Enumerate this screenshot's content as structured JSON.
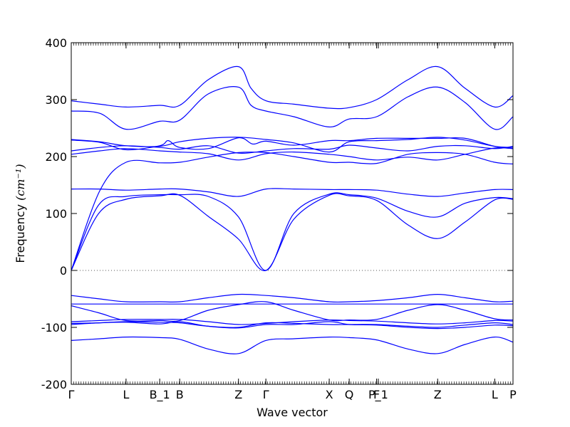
{
  "chart_data": {
    "type": "line",
    "title": "",
    "xlabel": "Wave vector",
    "ylabel": "Frequency ",
    "ylabel_unit": "(cm⁻¹)",
    "ylim": [
      -200,
      400
    ],
    "yticks": [
      -200,
      -100,
      0,
      100,
      200,
      300,
      400
    ],
    "xlim": [
      0,
      7.74
    ],
    "xticks": [
      {
        "pos": 0.0,
        "label": "Γ"
      },
      {
        "pos": 0.96,
        "label": "L"
      },
      {
        "pos": 1.55,
        "label": "B_1"
      },
      {
        "pos": 1.9,
        "label": "B"
      },
      {
        "pos": 2.93,
        "label": "Z"
      },
      {
        "pos": 3.41,
        "label": "Γ"
      },
      {
        "pos": 4.52,
        "label": "X"
      },
      {
        "pos": 4.87,
        "label": "Q"
      },
      {
        "pos": 5.35,
        "label": "F"
      },
      {
        "pos": 5.38,
        "label": "P_1"
      },
      {
        "pos": 6.42,
        "label": "Z"
      },
      {
        "pos": 7.42,
        "label": "L"
      },
      {
        "pos": 7.74,
        "label": "P"
      }
    ],
    "zero_line": true,
    "grid": false,
    "series": [
      {
        "color": "#0000ff",
        "x": [
          0,
          0.48,
          0.96,
          1.55,
          1.9,
          2.4,
          2.93,
          3.41,
          3.9,
          4.52,
          4.87,
          5.35,
          5.9,
          6.42,
          6.9,
          7.42,
          7.74
        ],
        "y": [
          0,
          100,
          125,
          131,
          132,
          95,
          55,
          0,
          90,
          132,
          131,
          123,
          80,
          56,
          85,
          124,
          125
        ]
      },
      {
        "color": "#0000ff",
        "x": [
          0,
          0.48,
          0.96,
          1.55,
          1.9,
          2.4,
          2.93,
          3.41,
          3.9,
          4.52,
          4.87,
          5.35,
          5.9,
          6.42,
          6.9,
          7.42,
          7.74
        ],
        "y": [
          0,
          115,
          130,
          133,
          133,
          130,
          94,
          0,
          100,
          134,
          133,
          127,
          104,
          94,
          118,
          128,
          126
        ]
      },
      {
        "color": "#0000ff",
        "x": [
          0,
          0.5,
          0.96,
          1.55,
          1.9,
          2.4,
          2.93,
          3.41,
          3.9,
          4.52,
          4.87,
          5.35,
          5.9,
          6.42,
          6.9,
          7.42,
          7.74
        ],
        "y": [
          143,
          143,
          141,
          143,
          143,
          138,
          130,
          143,
          143,
          142,
          142,
          141,
          134,
          130,
          136,
          142,
          142
        ]
      },
      {
        "color": "#0000ff",
        "x": [
          0,
          0.5,
          0.96,
          1.55,
          1.9,
          2.4,
          2.93,
          3.41,
          3.9,
          4.52,
          4.87,
          5.35,
          5.9,
          6.42,
          6.9,
          7.42,
          7.74
        ],
        "y": [
          0,
          140,
          190,
          189,
          190,
          199,
          207,
          207,
          200,
          190,
          190,
          188,
          204,
          207,
          204,
          190,
          187
        ]
      },
      {
        "color": "#0000ff",
        "x": [
          0,
          0.5,
          0.96,
          1.55,
          1.9,
          2.4,
          2.93,
          3.41,
          3.9,
          4.52,
          4.87,
          5.35,
          5.9,
          6.42,
          6.9,
          7.42,
          7.74
        ],
        "y": [
          204,
          210,
          214,
          210,
          208,
          205,
          194,
          205,
          208,
          204,
          200,
          194,
          199,
          194,
          204,
          215,
          214
        ]
      },
      {
        "color": "#0000ff",
        "x": [
          0,
          0.5,
          0.96,
          1.55,
          1.9,
          2.4,
          2.93,
          3.41,
          3.9,
          4.52,
          4.87,
          5.35,
          5.9,
          6.42,
          6.9,
          7.42,
          7.74
        ],
        "y": [
          210,
          216,
          219,
          216,
          213,
          219,
          206,
          210,
          214,
          213,
          220,
          215,
          210,
          218,
          219,
          214,
          218
        ]
      },
      {
        "color": "#0000ff",
        "x": [
          0,
          0.5,
          0.96,
          1.55,
          1.7,
          1.9,
          2.4,
          2.93,
          3.18,
          3.41,
          3.9,
          4.52,
          4.87,
          5.35,
          5.9,
          6.42,
          6.9,
          7.42,
          7.74
        ],
        "y": [
          229,
          225,
          212,
          219,
          228,
          216,
          214,
          233,
          222,
          227,
          220,
          228,
          228,
          232,
          232,
          232,
          232,
          218,
          214
        ]
      },
      {
        "color": "#0000ff",
        "x": [
          0,
          0.5,
          0.96,
          1.55,
          1.9,
          2.4,
          2.93,
          3.41,
          3.9,
          4.52,
          4.87,
          5.35,
          5.9,
          6.42,
          6.9,
          7.42,
          7.74
        ],
        "y": [
          230,
          226,
          219,
          218,
          226,
          232,
          234,
          230,
          224,
          208,
          226,
          228,
          230,
          234,
          229,
          218,
          216
        ]
      },
      {
        "color": "#0000ff",
        "x": [
          0,
          0.5,
          0.96,
          1.55,
          1.9,
          2.4,
          2.93,
          3.15,
          3.41,
          3.9,
          4.52,
          4.87,
          5.35,
          5.9,
          6.42,
          6.9,
          7.42,
          7.74
        ],
        "y": [
          280,
          276,
          248,
          262,
          264,
          310,
          322,
          290,
          280,
          270,
          252,
          266,
          270,
          305,
          322,
          295,
          248,
          270
        ]
      },
      {
        "color": "#0000ff",
        "x": [
          0,
          0.5,
          0.96,
          1.55,
          1.9,
          2.4,
          2.93,
          3.15,
          3.41,
          3.9,
          4.52,
          4.87,
          5.35,
          5.9,
          6.42,
          6.9,
          7.42,
          7.74
        ],
        "y": [
          298,
          292,
          287,
          290,
          290,
          335,
          358,
          320,
          298,
          292,
          285,
          286,
          300,
          335,
          358,
          320,
          287,
          307
        ]
      },
      {
        "color": "#0000ff",
        "x": [
          0,
          0.5,
          0.96,
          1.55,
          1.9,
          2.4,
          2.93,
          3.41,
          3.9,
          4.52,
          4.87,
          5.35,
          5.9,
          6.42,
          6.9,
          7.42,
          7.74
        ],
        "y": [
          -44,
          -50,
          -55,
          -55,
          -55,
          -48,
          -42,
          -44,
          -48,
          -55,
          -55,
          -53,
          -48,
          -42,
          -48,
          -55,
          -54
        ]
      },
      {
        "color": "#0000ff",
        "x": [
          0,
          0.5,
          0.96,
          1.55,
          1.9,
          2.4,
          2.93,
          3.41,
          3.9,
          4.52,
          4.87,
          5.35,
          5.9,
          6.42,
          6.9,
          7.42,
          7.74
        ],
        "y": [
          -59,
          -59,
          -59,
          -59,
          -59,
          -59,
          -59,
          -59,
          -59,
          -59,
          -59,
          -59,
          -59,
          -59,
          -59,
          -59,
          -59
        ]
      },
      {
        "color": "#0000ff",
        "x": [
          0,
          0.5,
          0.96,
          1.55,
          1.9,
          2.4,
          2.93,
          3.41,
          3.9,
          4.52,
          4.87,
          5.35,
          5.9,
          6.42,
          6.9,
          7.42,
          7.74
        ],
        "y": [
          -62,
          -75,
          -88,
          -88,
          -88,
          -70,
          -60,
          -55,
          -70,
          -87,
          -87,
          -86,
          -70,
          -60,
          -70,
          -85,
          -87
        ]
      },
      {
        "color": "#0000ff",
        "x": [
          0,
          0.5,
          0.96,
          1.55,
          1.9,
          2.4,
          2.93,
          3.41,
          3.9,
          4.52,
          4.87,
          5.35,
          5.9,
          6.42,
          6.9,
          7.42,
          7.74
        ],
        "y": [
          -90,
          -88,
          -86,
          -86,
          -86,
          -90,
          -95,
          -93,
          -90,
          -87,
          -88,
          -89,
          -92,
          -94,
          -92,
          -88,
          -89
        ]
      },
      {
        "color": "#0000ff",
        "x": [
          0,
          0.5,
          0.96,
          1.55,
          1.9,
          2.4,
          2.93,
          3.41,
          3.9,
          4.52,
          4.87,
          5.35,
          5.9,
          6.42,
          6.9,
          7.42,
          7.74
        ],
        "y": [
          -93,
          -92,
          -90,
          -91,
          -92,
          -98,
          -100,
          -92,
          -93,
          -95,
          -95,
          -95,
          -98,
          -100,
          -96,
          -92,
          -95
        ]
      },
      {
        "color": "#0000ff",
        "x": [
          0,
          0.5,
          0.96,
          1.55,
          1.9,
          2.4,
          2.93,
          3.41,
          3.9,
          4.52,
          4.87,
          5.35,
          5.9,
          6.42,
          6.9,
          7.42,
          7.74
        ],
        "y": [
          -95,
          -92,
          -91,
          -94,
          -90,
          -98,
          -101,
          -95,
          -95,
          -90,
          -95,
          -96,
          -100,
          -102,
          -100,
          -96,
          -97
        ]
      },
      {
        "color": "#0000ff",
        "x": [
          0,
          0.5,
          0.96,
          1.55,
          1.9,
          2.4,
          2.93,
          3.41,
          3.9,
          4.52,
          4.87,
          5.35,
          5.9,
          6.42,
          6.9,
          7.42,
          7.74
        ],
        "y": [
          -123,
          -120,
          -117,
          -118,
          -121,
          -138,
          -146,
          -123,
          -120,
          -117,
          -118,
          -122,
          -138,
          -146,
          -130,
          -117,
          -126
        ]
      }
    ]
  }
}
